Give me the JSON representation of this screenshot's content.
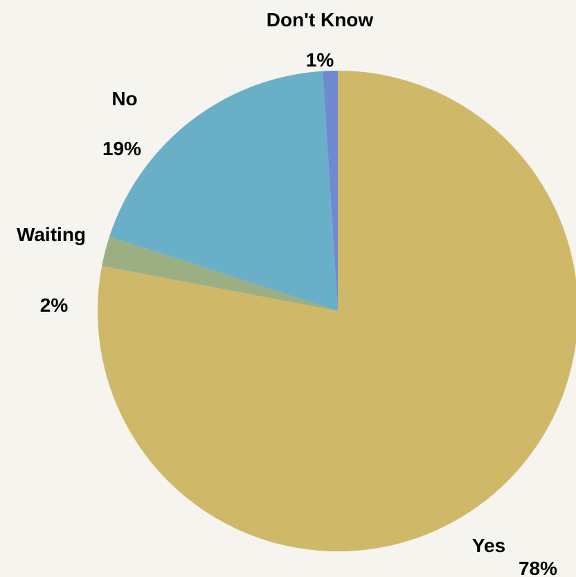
{
  "chart_data": {
    "type": "pie",
    "slices": [
      {
        "label": "Yes",
        "value": 78,
        "value_text": "78%",
        "color": "#cfb968"
      },
      {
        "label": "Waiting",
        "value": 2,
        "value_text": "2%",
        "color": "#9caf82"
      },
      {
        "label": "No",
        "value": 19,
        "value_text": "19%",
        "color": "#6aafc8"
      },
      {
        "label": "Don't Know",
        "value": 1,
        "value_text": "1%",
        "color": "#6f89d3"
      }
    ],
    "start_angle_deg": 0,
    "direction": "clockwise",
    "legend": "none",
    "background_color": "#f5f4ef"
  }
}
